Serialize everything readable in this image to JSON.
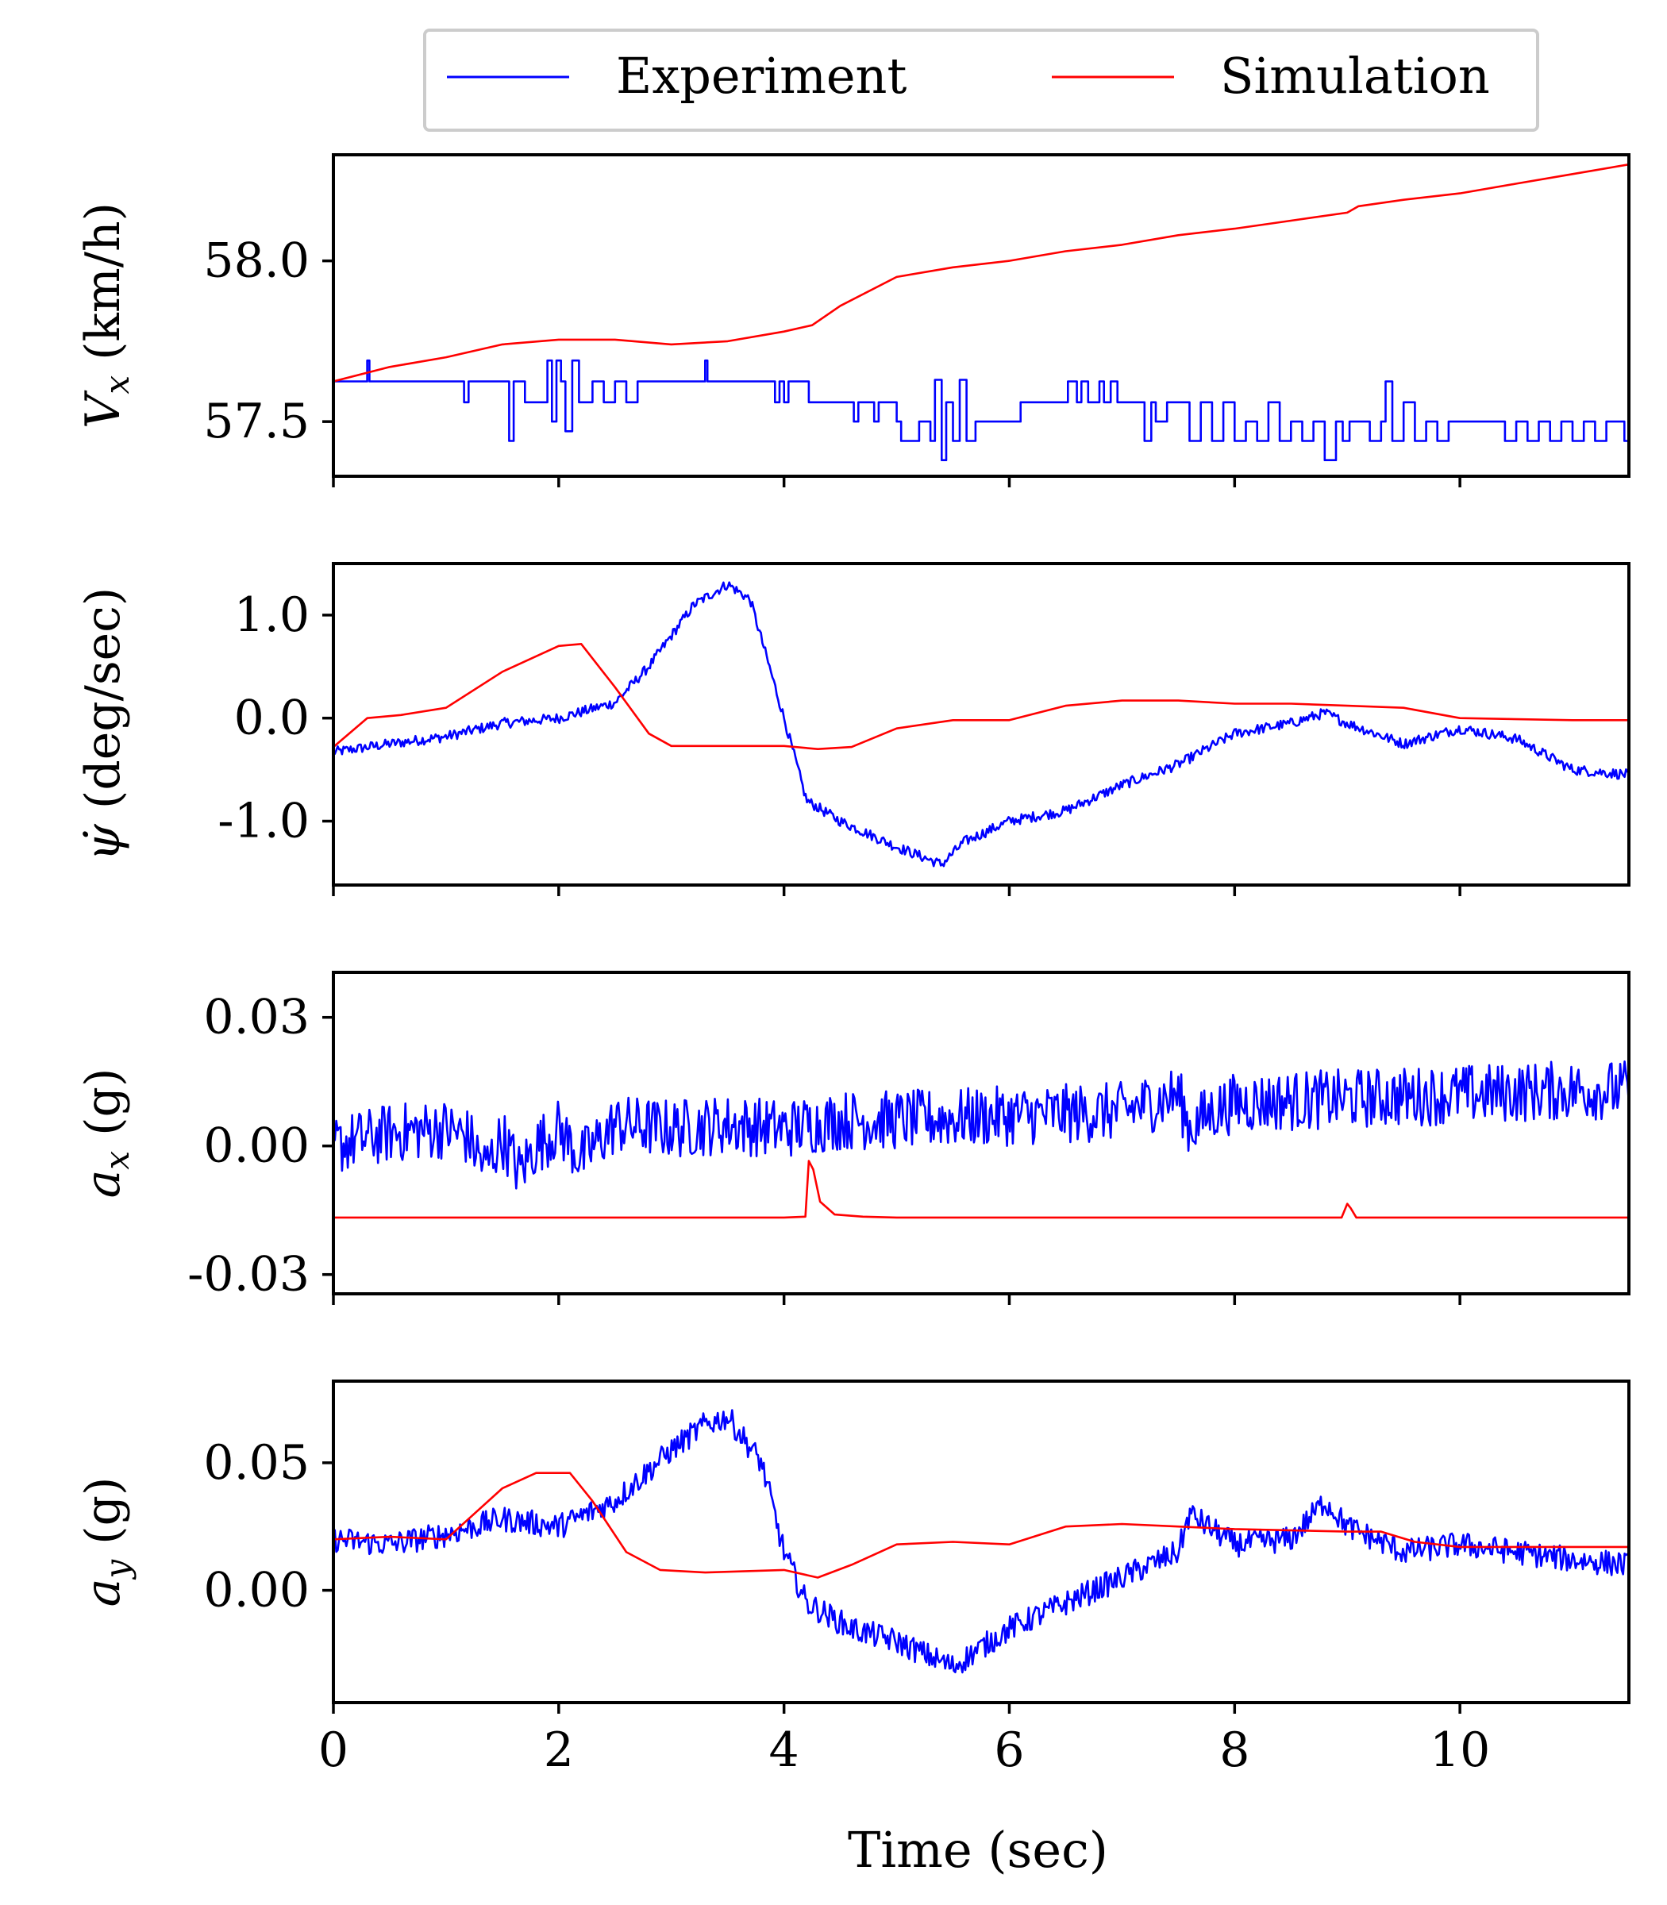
{
  "legend": {
    "placement": "top-center",
    "entries": [
      {
        "label": "Experiment",
        "color": "#0000ff"
      },
      {
        "label": "Simulation",
        "color": "#ff0000"
      }
    ]
  },
  "x_label": "Time (sec)",
  "chart_data": [
    {
      "type": "line",
      "ylabel_main": "V",
      "ylabel_sub": "x",
      "ylabel_unit": "(km/h)",
      "xlim": [
        0,
        11.5
      ],
      "ylim": [
        57.33,
        58.33
      ],
      "yticks": [
        {
          "v": 57.5,
          "label": "57.5"
        },
        {
          "v": 58.0,
          "label": "58.0"
        }
      ],
      "xticks": [
        0,
        2,
        4,
        6,
        8,
        10
      ],
      "xtick_labels": [],
      "series": [
        {
          "name": "Experiment",
          "color": "#0000ff",
          "style": "step",
          "noise": 0.0,
          "x": [
            0,
            0.3,
            0.32,
            0.34,
            1.14,
            1.16,
            1.2,
            1.52,
            1.56,
            1.6,
            1.64,
            1.7,
            1.9,
            1.94,
            1.98,
            2.02,
            2.06,
            2.12,
            2.18,
            2.3,
            2.4,
            2.5,
            2.6,
            2.7,
            3.1,
            3.3,
            3.32,
            3.38,
            3.9,
            3.92,
            3.96,
            4.0,
            4.04,
            4.1,
            4.22,
            4.26,
            4.6,
            4.62,
            4.66,
            4.8,
            4.84,
            5.0,
            5.04,
            5.2,
            5.3,
            5.34,
            5.4,
            5.44,
            5.5,
            5.56,
            5.62,
            5.7,
            5.8,
            6.0,
            6.1,
            6.3,
            6.5,
            6.52,
            6.6,
            6.64,
            6.7,
            6.8,
            6.84,
            6.9,
            6.96,
            7.1,
            7.2,
            7.26,
            7.3,
            7.4,
            7.6,
            7.7,
            7.8,
            7.9,
            8.0,
            8.1,
            8.2,
            8.3,
            8.4,
            8.5,
            8.6,
            8.7,
            8.8,
            8.9,
            8.96,
            9.02,
            9.1,
            9.2,
            9.3,
            9.34,
            9.4,
            9.5,
            9.6,
            9.7,
            9.8,
            9.9,
            10.0,
            10.2,
            10.4,
            10.5,
            10.6,
            10.7,
            10.8,
            10.9,
            11.0,
            11.1,
            11.2,
            11.3,
            11.4,
            11.46,
            11.5
          ],
          "y": [
            57.625,
            57.69,
            57.625,
            57.625,
            57.625,
            57.56,
            57.625,
            57.625,
            57.44,
            57.625,
            57.625,
            57.56,
            57.69,
            57.5,
            57.69,
            57.625,
            57.47,
            57.69,
            57.56,
            57.625,
            57.56,
            57.625,
            57.56,
            57.625,
            57.625,
            57.69,
            57.625,
            57.625,
            57.625,
            57.56,
            57.625,
            57.56,
            57.625,
            57.625,
            57.56,
            57.56,
            57.56,
            57.5,
            57.56,
            57.5,
            57.56,
            57.5,
            57.44,
            57.5,
            57.44,
            57.63,
            57.38,
            57.56,
            57.44,
            57.63,
            57.44,
            57.5,
            57.5,
            57.5,
            57.56,
            57.56,
            57.56,
            57.625,
            57.56,
            57.625,
            57.56,
            57.625,
            57.56,
            57.625,
            57.56,
            57.56,
            57.44,
            57.56,
            57.5,
            57.56,
            57.44,
            57.56,
            57.44,
            57.56,
            57.44,
            57.5,
            57.44,
            57.56,
            57.44,
            57.5,
            57.44,
            57.5,
            57.38,
            57.5,
            57.44,
            57.5,
            57.5,
            57.44,
            57.5,
            57.625,
            57.44,
            57.56,
            57.44,
            57.5,
            57.44,
            57.5,
            57.5,
            57.5,
            57.44,
            57.5,
            57.44,
            57.5,
            57.44,
            57.5,
            57.44,
            57.5,
            57.44,
            57.5,
            57.5,
            57.44,
            57.44
          ]
        },
        {
          "name": "Simulation",
          "color": "#ff0000",
          "style": "line",
          "noise": 0.0,
          "x": [
            0,
            0.5,
            1.0,
            1.5,
            2.0,
            2.5,
            3.0,
            3.5,
            4.0,
            4.25,
            4.5,
            5.0,
            5.5,
            6.0,
            6.5,
            7.0,
            7.5,
            8.0,
            8.5,
            9.0,
            9.1,
            9.5,
            10.0,
            10.5,
            11.0,
            11.5
          ],
          "y": [
            57.625,
            57.67,
            57.7,
            57.74,
            57.755,
            57.755,
            57.74,
            57.75,
            57.78,
            57.8,
            57.86,
            57.95,
            57.98,
            58.0,
            58.03,
            58.05,
            58.08,
            58.1,
            58.125,
            58.15,
            58.17,
            58.19,
            58.21,
            58.24,
            58.27,
            58.3
          ]
        }
      ]
    },
    {
      "type": "line",
      "ylabel_main": "ψ̇",
      "ylabel_sub": "",
      "ylabel_unit": "(deg/sec)",
      "xlim": [
        0,
        11.5
      ],
      "ylim": [
        -1.62,
        1.5
      ],
      "yticks": [
        {
          "v": -1.0,
          "label": "-1.0"
        },
        {
          "v": 0.0,
          "label": "0.0"
        },
        {
          "v": 1.0,
          "label": "1.0"
        }
      ],
      "xticks": [
        0,
        2,
        4,
        6,
        8,
        10
      ],
      "xtick_labels": [],
      "series": [
        {
          "name": "Experiment",
          "color": "#0000ff",
          "style": "line",
          "noise": 0.05,
          "x": [
            0,
            0.5,
            1.0,
            1.5,
            2.0,
            2.5,
            2.8,
            3.2,
            3.5,
            3.7,
            4.0,
            4.2,
            4.5,
            5.0,
            5.4,
            5.6,
            6.0,
            6.5,
            7.0,
            7.5,
            8.0,
            8.5,
            8.8,
            9.0,
            9.5,
            10.0,
            10.5,
            11.0,
            11.5
          ],
          "y": [
            -0.33,
            -0.25,
            -0.18,
            -0.05,
            0.0,
            0.15,
            0.5,
            1.1,
            1.3,
            1.15,
            0.0,
            -0.8,
            -1.0,
            -1.25,
            -1.42,
            -1.2,
            -1.0,
            -0.9,
            -0.65,
            -0.45,
            -0.15,
            -0.05,
            0.05,
            -0.05,
            -0.25,
            -0.1,
            -0.2,
            -0.5,
            -0.55
          ]
        },
        {
          "name": "Simulation",
          "color": "#ff0000",
          "style": "line",
          "noise": 0.0,
          "x": [
            0,
            0.3,
            0.6,
            1.0,
            1.5,
            2.0,
            2.2,
            2.5,
            2.8,
            3.0,
            3.5,
            4.0,
            4.3,
            4.6,
            5.0,
            5.5,
            6.0,
            6.5,
            7.0,
            7.5,
            8.0,
            8.5,
            9.0,
            9.5,
            10.0,
            11.0,
            11.5
          ],
          "y": [
            -0.28,
            0.0,
            0.03,
            0.1,
            0.45,
            0.7,
            0.72,
            0.3,
            -0.15,
            -0.27,
            -0.27,
            -0.27,
            -0.3,
            -0.28,
            -0.1,
            -0.02,
            -0.02,
            0.12,
            0.17,
            0.17,
            0.14,
            0.14,
            0.12,
            0.1,
            0.0,
            -0.02,
            -0.02
          ]
        }
      ]
    },
    {
      "type": "line",
      "ylabel_main": "a",
      "ylabel_sub": "x",
      "ylabel_unit": "(g)",
      "xlim": [
        0,
        11.5
      ],
      "ylim": [
        -0.0345,
        0.0405
      ],
      "yticks": [
        {
          "v": -0.03,
          "label": "-0.03"
        },
        {
          "v": 0.0,
          "label": "0.00"
        },
        {
          "v": 0.03,
          "label": "0.03"
        }
      ],
      "xticks": [
        0,
        2,
        4,
        6,
        8,
        10
      ],
      "xtick_labels": [],
      "series": [
        {
          "name": "Experiment",
          "color": "#0000ff",
          "style": "line",
          "noise": 0.007,
          "x": [
            0,
            0.5,
            1.0,
            1.2,
            1.35,
            1.5,
            1.65,
            1.8,
            2.0,
            2.2,
            2.5,
            3.0,
            3.5,
            4.0,
            4.5,
            5.0,
            6.0,
            7.0,
            7.5,
            7.6,
            7.8,
            8.0,
            9.0,
            10.0,
            11.0,
            11.5
          ],
          "y": [
            0.0,
            0.003,
            0.004,
            0.002,
            -0.005,
            0.002,
            -0.006,
            0.0,
            0.004,
            -0.003,
            0.005,
            0.004,
            0.005,
            0.004,
            0.006,
            0.006,
            0.007,
            0.008,
            0.012,
            0.004,
            0.008,
            0.01,
            0.011,
            0.012,
            0.013,
            0.013
          ]
        },
        {
          "name": "Simulation",
          "color": "#ff0000",
          "style": "line",
          "noise": 0.0,
          "x": [
            0,
            4.0,
            4.19,
            4.22,
            4.26,
            4.32,
            4.45,
            4.7,
            5.0,
            8.95,
            9.0,
            9.03,
            9.08,
            11.5
          ],
          "y": [
            -0.0167,
            -0.0167,
            -0.0165,
            -0.0035,
            -0.0055,
            -0.013,
            -0.016,
            -0.0165,
            -0.0167,
            -0.0167,
            -0.0135,
            -0.0145,
            -0.0167,
            -0.0167
          ]
        }
      ]
    },
    {
      "type": "line",
      "ylabel_main": "a",
      "ylabel_sub": "y",
      "ylabel_unit": "(g)",
      "xlim": [
        0,
        11.5
      ],
      "ylim": [
        -0.044,
        0.082
      ],
      "yticks": [
        {
          "v": 0.0,
          "label": "0.00"
        },
        {
          "v": 0.05,
          "label": "0.05"
        }
      ],
      "xticks": [
        0,
        2,
        4,
        6,
        8,
        10
      ],
      "xtick_labels": [
        "0",
        "2",
        "4",
        "6",
        "8",
        "10"
      ],
      "series": [
        {
          "name": "Experiment",
          "color": "#0000ff",
          "style": "line",
          "noise": 0.005,
          "x": [
            0,
            0.5,
            1.0,
            1.5,
            2.0,
            2.5,
            3.0,
            3.3,
            3.5,
            3.8,
            4.0,
            4.2,
            4.6,
            5.0,
            5.5,
            6.0,
            6.5,
            7.0,
            7.5,
            7.6,
            8.0,
            8.5,
            8.8,
            9.0,
            9.5,
            10.0,
            10.5,
            11.0,
            11.5
          ],
          "y": [
            0.02,
            0.018,
            0.022,
            0.028,
            0.025,
            0.035,
            0.055,
            0.065,
            0.068,
            0.05,
            0.015,
            -0.005,
            -0.015,
            -0.02,
            -0.03,
            -0.015,
            -0.005,
            0.005,
            0.015,
            0.03,
            0.018,
            0.02,
            0.035,
            0.025,
            0.015,
            0.018,
            0.015,
            0.012,
            0.01
          ]
        },
        {
          "name": "Simulation",
          "color": "#ff0000",
          "style": "line",
          "noise": 0.0,
          "x": [
            0,
            0.5,
            1.0,
            1.5,
            1.8,
            2.1,
            2.3,
            2.6,
            2.9,
            3.3,
            4.0,
            4.3,
            4.6,
            5.0,
            5.5,
            6.0,
            6.5,
            7.0,
            7.5,
            8.0,
            9.0,
            9.3,
            9.6,
            10.0,
            11.5
          ],
          "y": [
            0.02,
            0.021,
            0.02,
            0.04,
            0.046,
            0.046,
            0.035,
            0.015,
            0.008,
            0.007,
            0.008,
            0.005,
            0.01,
            0.018,
            0.019,
            0.018,
            0.025,
            0.026,
            0.025,
            0.024,
            0.023,
            0.023,
            0.019,
            0.017,
            0.017
          ]
        }
      ]
    }
  ]
}
